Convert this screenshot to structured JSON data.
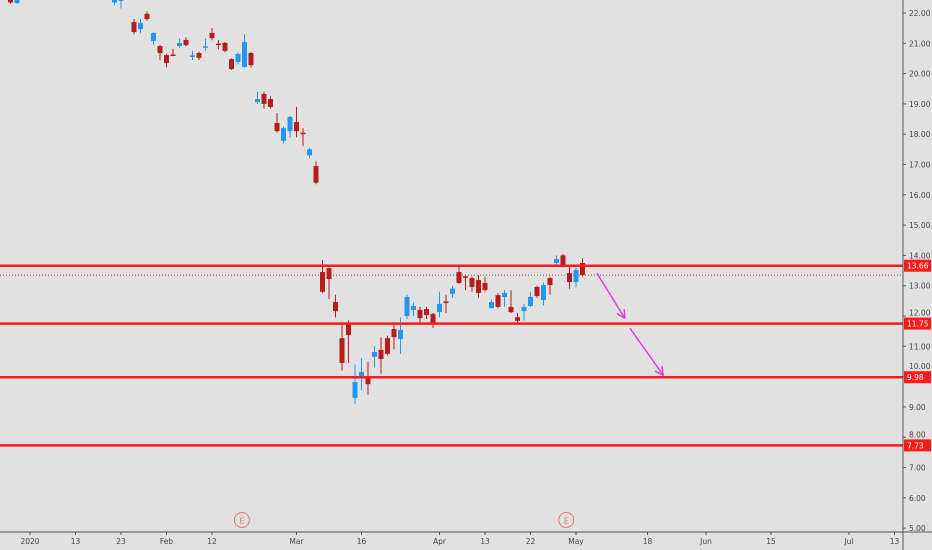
{
  "chart_data": {
    "type": "candlestick",
    "title": "",
    "xlabel": "",
    "ylabel": "",
    "ylim": [
      5,
      22
    ],
    "colors": {
      "up": "#2196f3",
      "down": "#b71c1c",
      "level": "#ff1a1a",
      "arrow": "#e23be0",
      "background": "#e1e1e1",
      "axis": "#555555",
      "earnings": "#e57373"
    },
    "y_ticks": [
      "22.00",
      "21.00",
      "20.00",
      "19.00",
      "18.00",
      "17.00",
      "16.00",
      "15.00",
      "14.00",
      "13.00",
      "12.00",
      "11.00",
      "10.00",
      "9.00",
      "8.00",
      "7.00",
      "6.00",
      "5.00"
    ],
    "x_ticks": [
      {
        "label": "2020",
        "idx": 0
      },
      {
        "label": "13",
        "idx": 7
      },
      {
        "label": "23",
        "idx": 14
      },
      {
        "label": "Feb",
        "idx": 21
      },
      {
        "label": "12",
        "idx": 28
      },
      {
        "label": "Mar",
        "idx": 41
      },
      {
        "label": "16",
        "idx": 51
      },
      {
        "label": "Apr",
        "idx": 63
      },
      {
        "label": "13",
        "idx": 70
      },
      {
        "label": "22",
        "idx": 77
      },
      {
        "label": "May",
        "idx": 84
      },
      {
        "label": "18",
        "idx": 95
      },
      {
        "label": "Jun",
        "idx": 104
      },
      {
        "label": "15",
        "idx": 114
      },
      {
        "label": "Jul",
        "idx": 126
      },
      {
        "label": "13",
        "idx": 133
      }
    ],
    "levels": [
      {
        "price": 13.66,
        "label": "13.66"
      },
      {
        "price": 11.75,
        "label": "11.75"
      },
      {
        "price": 9.98,
        "label": "9.98"
      },
      {
        "price": 7.73,
        "label": "7.73"
      }
    ],
    "last_price": 13.35,
    "arrows": [
      {
        "from": [
          87.2,
          13.42
        ],
        "to": [
          91.5,
          11.93
        ]
      },
      {
        "from": [
          92.3,
          11.6
        ],
        "to": [
          97.4,
          10.05
        ]
      }
    ],
    "events": [
      {
        "label": "E",
        "idx": 32.6
      },
      {
        "label": "E",
        "idx": 82.5
      }
    ],
    "candles": [
      [
        -3,
        22.45,
        22.5,
        22.3,
        22.35
      ],
      [
        -2,
        22.33,
        22.5,
        22.3,
        22.45
      ],
      [
        13,
        22.35,
        22.5,
        22.25,
        22.45
      ],
      [
        14,
        22.4,
        22.6,
        22.15,
        22.5
      ],
      [
        15,
        22.55,
        22.6,
        22.45,
        22.5
      ],
      [
        16,
        21.7,
        21.8,
        21.3,
        21.37
      ],
      [
        17,
        21.47,
        21.8,
        21.34,
        21.67
      ],
      [
        18,
        21.97,
        22.05,
        21.75,
        21.8
      ],
      [
        19,
        21.08,
        21.36,
        20.95,
        21.34
      ],
      [
        20,
        20.91,
        20.95,
        20.45,
        20.68
      ],
      [
        21,
        20.61,
        20.65,
        20.2,
        20.35
      ],
      [
        22,
        20.63,
        20.82,
        20.58,
        20.6
      ],
      [
        23,
        20.91,
        21.15,
        20.85,
        21.01
      ],
      [
        24,
        21.11,
        21.2,
        20.9,
        20.94
      ],
      [
        25,
        20.55,
        20.75,
        20.45,
        20.6
      ],
      [
        26,
        20.68,
        20.72,
        20.45,
        20.52
      ],
      [
        27,
        20.85,
        21.15,
        20.75,
        20.9
      ],
      [
        28,
        21.34,
        21.5,
        21.1,
        21.17
      ],
      [
        29,
        20.99,
        21.1,
        20.8,
        20.95
      ],
      [
        30,
        21.01,
        21.05,
        20.7,
        20.75
      ],
      [
        31,
        20.48,
        20.5,
        20.12,
        20.15
      ],
      [
        32,
        20.38,
        20.7,
        20.3,
        20.65
      ],
      [
        33,
        20.22,
        21.3,
        20.2,
        21.04
      ],
      [
        34,
        20.68,
        20.72,
        20.2,
        20.28
      ],
      [
        35,
        19.06,
        19.4,
        19.0,
        19.16
      ],
      [
        36,
        19.33,
        19.4,
        18.85,
        19.0
      ],
      [
        37,
        19.16,
        19.25,
        18.85,
        18.9
      ],
      [
        38,
        18.37,
        18.7,
        18.05,
        18.1
      ],
      [
        39,
        17.78,
        18.25,
        17.7,
        18.2
      ],
      [
        40,
        18.1,
        18.6,
        17.9,
        18.57
      ],
      [
        41,
        18.4,
        18.9,
        17.9,
        18.1
      ],
      [
        42,
        18.05,
        18.2,
        17.6,
        18.02
      ],
      [
        43,
        17.3,
        17.55,
        17.2,
        17.5
      ],
      [
        44,
        16.95,
        17.1,
        16.35,
        16.4
      ],
      [
        45,
        13.45,
        13.85,
        12.75,
        12.8
      ],
      [
        46,
        13.58,
        13.6,
        12.55,
        13.22
      ],
      [
        47,
        12.46,
        12.7,
        11.95,
        12.16
      ],
      [
        48,
        11.27,
        11.8,
        10.2,
        10.45
      ],
      [
        49,
        11.77,
        11.85,
        10.45,
        11.37
      ],
      [
        50,
        9.3,
        10.4,
        9.1,
        9.82
      ],
      [
        51,
        9.95,
        10.6,
        9.55,
        10.15
      ],
      [
        52,
        9.98,
        10.5,
        9.4,
        9.75
      ],
      [
        53,
        10.65,
        11.0,
        10.3,
        10.81
      ],
      [
        54,
        10.88,
        11.3,
        10.1,
        10.58
      ],
      [
        55,
        11.27,
        11.35,
        10.7,
        10.75
      ],
      [
        56,
        11.57,
        11.8,
        10.9,
        11.3
      ],
      [
        57,
        11.24,
        11.95,
        10.75,
        11.54
      ],
      [
        58,
        12.0,
        12.7,
        11.9,
        12.63
      ],
      [
        59,
        12.2,
        12.45,
        12.0,
        12.33
      ],
      [
        60,
        12.2,
        12.3,
        11.7,
        11.93
      ],
      [
        61,
        12.23,
        12.3,
        11.9,
        12.03
      ],
      [
        62,
        12.07,
        12.1,
        11.6,
        11.77
      ],
      [
        63,
        12.13,
        12.8,
        11.95,
        12.4
      ],
      [
        64,
        12.48,
        12.7,
        12.1,
        12.45
      ],
      [
        65,
        12.73,
        13.0,
        12.6,
        12.9
      ],
      [
        66,
        13.45,
        13.7,
        13.05,
        13.09
      ],
      [
        67,
        13.31,
        13.35,
        12.85,
        13.28
      ],
      [
        68,
        13.25,
        13.3,
        12.8,
        12.96
      ],
      [
        69,
        13.19,
        13.35,
        12.6,
        12.76
      ],
      [
        70,
        13.09,
        13.3,
        12.8,
        12.86
      ],
      [
        71,
        12.26,
        12.55,
        12.25,
        12.46
      ],
      [
        72,
        12.69,
        12.75,
        12.25,
        12.3
      ],
      [
        73,
        12.63,
        12.85,
        12.3,
        12.76
      ],
      [
        74,
        12.3,
        12.85,
        12.1,
        12.13
      ],
      [
        75,
        11.96,
        12.1,
        11.78,
        11.84
      ],
      [
        76,
        12.17,
        12.4,
        11.85,
        12.3
      ],
      [
        77,
        12.33,
        12.8,
        12.3,
        12.63
      ],
      [
        78,
        12.96,
        13.0,
        12.6,
        12.66
      ],
      [
        79,
        12.53,
        13.1,
        12.35,
        13.02
      ],
      [
        80,
        13.25,
        13.3,
        12.7,
        13.02
      ],
      [
        81,
        13.75,
        14.0,
        13.7,
        13.88
      ],
      [
        82,
        14.0,
        14.05,
        13.6,
        13.65
      ],
      [
        83,
        13.42,
        13.7,
        12.9,
        13.12
      ],
      [
        84,
        13.12,
        13.6,
        12.95,
        13.52
      ],
      [
        85,
        13.75,
        13.9,
        13.3,
        13.35
      ]
    ]
  }
}
